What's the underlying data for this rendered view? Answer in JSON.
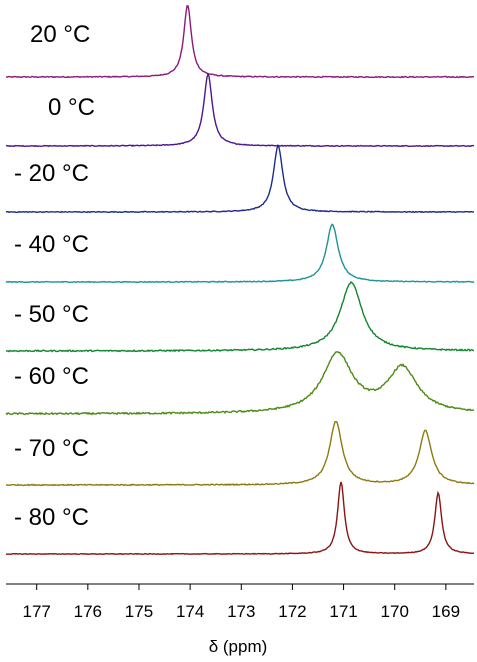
{
  "chart_data": {
    "type": "line",
    "title": "",
    "xlabel": "δ (ppm)",
    "ylabel": "",
    "x_reversed": true,
    "xlim": [
      177.6,
      168.45
    ],
    "x_ticks": [
      177,
      176,
      175,
      174,
      173,
      172,
      171,
      170,
      169
    ],
    "grid": false,
    "stacked": true,
    "series": [
      {
        "name": "20 °C",
        "color": "#8b1a7c",
        "peaks": [
          {
            "x": 174.05,
            "height": 1.0,
            "width": 0.09
          }
        ],
        "noise": 0.06
      },
      {
        "name": "0 °C",
        "color": "#4b1690",
        "peaks": [
          {
            "x": 173.65,
            "height": 1.0,
            "width": 0.1
          }
        ],
        "noise": 0.05
      },
      {
        "name": "- 20 °C",
        "color": "#1c2c8c",
        "peaks": [
          {
            "x": 172.28,
            "height": 0.92,
            "width": 0.11
          }
        ],
        "noise": 0.05
      },
      {
        "name": "- 40 °C",
        "color": "#1f9397",
        "peaks": [
          {
            "x": 171.22,
            "height": 0.8,
            "width": 0.14
          }
        ],
        "noise": 0.05
      },
      {
        "name": "- 50 °C",
        "color": "#11852f",
        "peaks": [
          {
            "x": 170.85,
            "height": 0.95,
            "width": 0.26
          }
        ],
        "noise": 0.08
      },
      {
        "name": "- 60 °C",
        "color": "#4b8a14",
        "peaks": [
          {
            "x": 171.12,
            "height": 0.82,
            "width": 0.35
          },
          {
            "x": 169.85,
            "height": 0.62,
            "width": 0.35
          }
        ],
        "noise": 0.1
      },
      {
        "name": "- 70 °C",
        "color": "#8c7a10",
        "peaks": [
          {
            "x": 171.15,
            "height": 0.88,
            "width": 0.15
          },
          {
            "x": 169.4,
            "height": 0.75,
            "width": 0.15
          }
        ],
        "noise": 0.06
      },
      {
        "name": "- 80 °C",
        "color": "#8a1414",
        "peaks": [
          {
            "x": 171.05,
            "height": 1.0,
            "width": 0.08
          },
          {
            "x": 169.15,
            "height": 0.85,
            "width": 0.08
          }
        ],
        "noise": 0.04
      }
    ]
  }
}
